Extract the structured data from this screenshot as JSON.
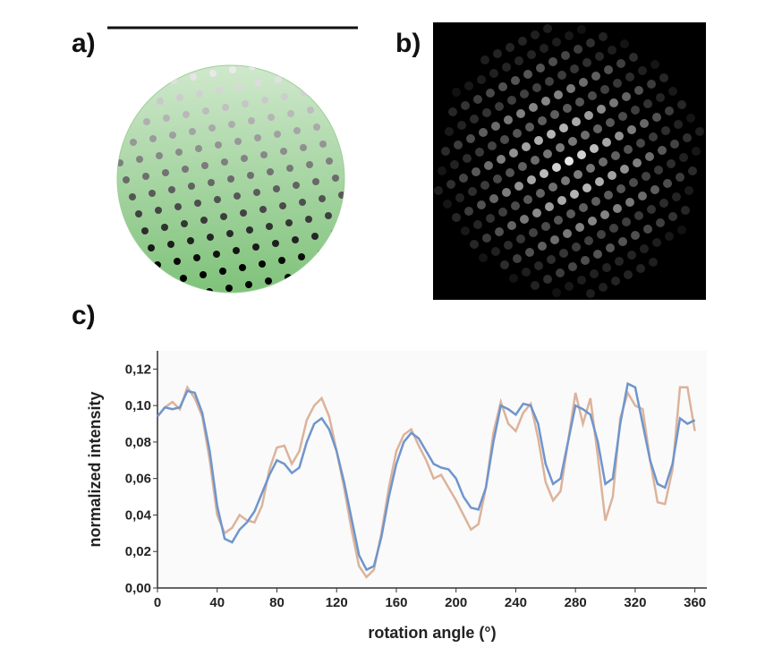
{
  "panel_labels": [
    "a)",
    "b)",
    "c)"
  ],
  "chart_data": {
    "type": "line",
    "xlabel": "rotation angle (°)",
    "ylabel": "normalized intensity",
    "xlim": [
      0,
      368
    ],
    "ylim": [
      0,
      0.13
    ],
    "xticks": [
      0,
      40,
      80,
      120,
      160,
      200,
      240,
      280,
      320,
      360
    ],
    "yticks": [
      {
        "value": 0,
        "label": "0,00"
      },
      {
        "value": 0.02,
        "label": "0,02"
      },
      {
        "value": 0.04,
        "label": "0,04"
      },
      {
        "value": 0.06,
        "label": "0,06"
      },
      {
        "value": 0.08,
        "label": "0,08"
      },
      {
        "value": 0.1,
        "label": "0,10"
      },
      {
        "value": 0.12,
        "label": "0,12"
      }
    ],
    "x": [
      0,
      5,
      10,
      15,
      20,
      25,
      30,
      35,
      40,
      45,
      50,
      55,
      60,
      65,
      70,
      75,
      80,
      85,
      90,
      95,
      100,
      105,
      110,
      115,
      120,
      125,
      130,
      135,
      140,
      145,
      150,
      155,
      160,
      165,
      170,
      175,
      180,
      185,
      190,
      195,
      200,
      205,
      210,
      215,
      220,
      225,
      230,
      235,
      240,
      245,
      250,
      255,
      260,
      265,
      270,
      275,
      280,
      285,
      290,
      295,
      300,
      305,
      310,
      315,
      320,
      325,
      330,
      335,
      340,
      345,
      350,
      355,
      360
    ],
    "series": [
      {
        "color": "#dcb39b",
        "values": [
          0.094,
          0.099,
          0.102,
          0.098,
          0.11,
          0.104,
          0.094,
          0.07,
          0.04,
          0.03,
          0.033,
          0.04,
          0.037,
          0.036,
          0.045,
          0.065,
          0.077,
          0.078,
          0.068,
          0.075,
          0.092,
          0.1,
          0.104,
          0.094,
          0.075,
          0.055,
          0.032,
          0.012,
          0.006,
          0.01,
          0.03,
          0.055,
          0.075,
          0.084,
          0.087,
          0.078,
          0.07,
          0.06,
          0.062,
          0.055,
          0.048,
          0.04,
          0.032,
          0.035,
          0.055,
          0.085,
          0.102,
          0.09,
          0.086,
          0.096,
          0.101,
          0.082,
          0.058,
          0.048,
          0.053,
          0.08,
          0.107,
          0.09,
          0.104,
          0.072,
          0.037,
          0.05,
          0.093,
          0.107,
          0.1,
          0.098,
          0.07,
          0.047,
          0.046,
          0.065,
          0.11,
          0.11,
          0.086
        ]
      },
      {
        "color": "#6f95cc",
        "values": [
          0.094,
          0.099,
          0.098,
          0.099,
          0.108,
          0.107,
          0.096,
          0.075,
          0.045,
          0.027,
          0.025,
          0.032,
          0.036,
          0.042,
          0.052,
          0.062,
          0.07,
          0.068,
          0.063,
          0.066,
          0.08,
          0.09,
          0.093,
          0.087,
          0.075,
          0.058,
          0.038,
          0.018,
          0.01,
          0.012,
          0.028,
          0.05,
          0.068,
          0.08,
          0.085,
          0.082,
          0.075,
          0.068,
          0.066,
          0.065,
          0.06,
          0.05,
          0.044,
          0.043,
          0.055,
          0.08,
          0.1,
          0.098,
          0.095,
          0.101,
          0.1,
          0.09,
          0.068,
          0.057,
          0.06,
          0.08,
          0.1,
          0.098,
          0.095,
          0.08,
          0.057,
          0.06,
          0.09,
          0.112,
          0.11,
          0.09,
          0.07,
          0.057,
          0.055,
          0.068,
          0.093,
          0.09,
          0.092
        ]
      }
    ]
  }
}
